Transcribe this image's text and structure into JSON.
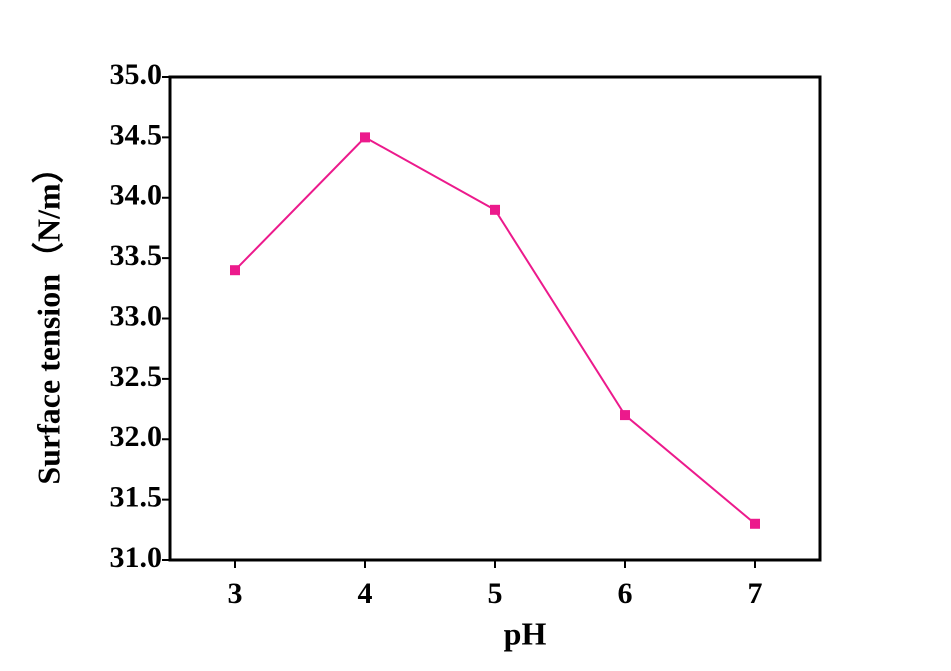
{
  "chart_data": {
    "type": "line",
    "x_label": "pH",
    "y_label": "Surface tension（N/m）",
    "x": [
      3,
      4,
      5,
      6,
      7
    ],
    "values": [
      33.4,
      34.5,
      33.9,
      32.2,
      31.3
    ],
    "color": "#ec1a8c",
    "xlim": [
      2.5,
      7.5
    ],
    "xticks": [
      3,
      4,
      5,
      6,
      7
    ],
    "ylim": [
      31,
      35
    ],
    "yticks": [
      {
        "value": 31,
        "label": "31.0"
      },
      {
        "value": 31.5,
        "label": "31.5"
      },
      {
        "value": 32,
        "label": "32.0"
      },
      {
        "value": 32.5,
        "label": "32.5"
      },
      {
        "value": 33,
        "label": "33.0"
      },
      {
        "value": 33.5,
        "label": "33.5"
      },
      {
        "value": 34,
        "label": "34.0"
      },
      {
        "value": 34.5,
        "label": "34.5"
      },
      {
        "value": 35,
        "label": "35.0"
      }
    ]
  }
}
